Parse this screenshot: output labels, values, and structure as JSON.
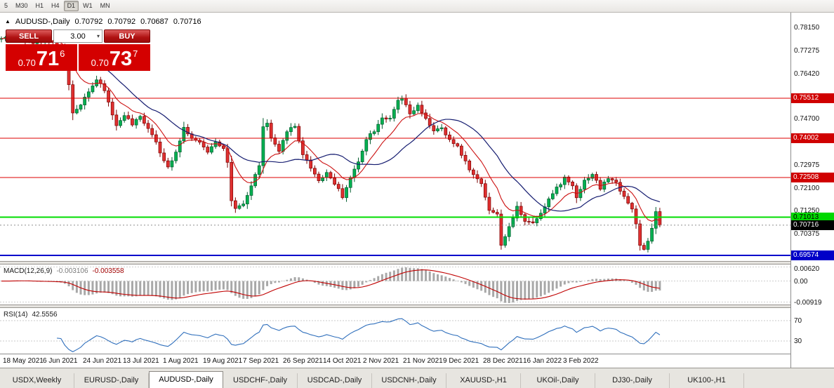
{
  "toolbar": {
    "timeframes": [
      {
        "label": "5",
        "active": false
      },
      {
        "label": "M30",
        "active": false
      },
      {
        "label": "H1",
        "active": false
      },
      {
        "label": "H4",
        "active": false
      },
      {
        "label": "D1",
        "active": true
      },
      {
        "label": "W1",
        "active": false
      },
      {
        "label": "MN",
        "active": false
      }
    ]
  },
  "chart": {
    "header": {
      "title": "AUDUSD-,Daily",
      "open": "0.70792",
      "high": "0.70792",
      "low": "0.70687",
      "close": "0.70716"
    },
    "trade_panel": {
      "sell_label": "SELL",
      "buy_label": "BUY",
      "volume": "3.00",
      "sell_price": {
        "prefix": "0.70",
        "big": "71",
        "sup": "6"
      },
      "buy_price": {
        "prefix": "0.70",
        "big": "73",
        "sup": "7"
      }
    },
    "indicator_labels": {
      "macd": {
        "name": "MACD(12,26,9)",
        "value1": "-0.003106",
        "value2": "-0.003558"
      },
      "rsi": {
        "name": "RSI(14)",
        "value": "42.5556"
      }
    }
  },
  "chart_data": {
    "type": "candlestick",
    "symbol": "AUDUSD-",
    "timeframe": "Daily",
    "price_range": [
      0.6936,
      0.7874
    ],
    "current_price": 0.70716,
    "x_dates": [
      "18 May 2021",
      "6 Jun 2021",
      "24 Jun 2021",
      "13 Jul 2021",
      "1 Aug 2021",
      "19 Aug 2021",
      "7 Sep 2021",
      "26 Sep 2021",
      "14 Oct 2021",
      "2 Nov 2021",
      "21 Nov 2021",
      "9 Dec 2021",
      "28 Dec 2021",
      "16 Jan 2022",
      "3 Feb 2022"
    ],
    "y_axis_labels": [
      0.7815,
      0.77275,
      0.7642,
      0.747,
      0.72975,
      0.721,
      0.7125,
      0.70375
    ],
    "levels": [
      {
        "price": 0.75512,
        "color": "#dd0000",
        "width": 1,
        "label_bg": "#d00000",
        "label_fg": "#ffffff"
      },
      {
        "price": 0.74002,
        "color": "#dd0000",
        "width": 1,
        "label_bg": "#d00000",
        "label_fg": "#ffffff"
      },
      {
        "price": 0.72508,
        "color": "#dd0000",
        "width": 1,
        "label_bg": "#d00000",
        "label_fg": "#ffffff"
      },
      {
        "price": 0.71013,
        "color": "#00dd00",
        "width": 2,
        "label_bg": "#00d800",
        "label_fg": "#000000"
      },
      {
        "price": 0.69574,
        "color": "#0000cc",
        "width": 2,
        "label_bg": "#0000c8",
        "label_fg": "#ffffff"
      }
    ],
    "candles": {
      "count": 167,
      "seed": 42,
      "up_color": "#00b050",
      "up_stroke": "#005c2e",
      "down_color": "#e03030",
      "down_stroke": "#7a0000",
      "close_waypoints": [
        [
          0,
          0.7775
        ],
        [
          4,
          0.779
        ],
        [
          8,
          0.776
        ],
        [
          12,
          0.777
        ],
        [
          15,
          0.774
        ],
        [
          16,
          0.769
        ],
        [
          17,
          0.76
        ],
        [
          18,
          0.749
        ],
        [
          20,
          0.753
        ],
        [
          22,
          0.758
        ],
        [
          24,
          0.762
        ],
        [
          26,
          0.758
        ],
        [
          28,
          0.749
        ],
        [
          29,
          0.7445
        ],
        [
          31,
          0.749
        ],
        [
          33,
          0.745
        ],
        [
          35,
          0.748
        ],
        [
          37,
          0.744
        ],
        [
          39,
          0.739
        ],
        [
          41,
          0.731
        ],
        [
          42,
          0.729
        ],
        [
          44,
          0.735
        ],
        [
          46,
          0.744
        ],
        [
          48,
          0.74
        ],
        [
          50,
          0.738
        ],
        [
          52,
          0.735
        ],
        [
          54,
          0.739
        ],
        [
          56,
          0.736
        ],
        [
          57,
          0.731
        ],
        [
          58,
          0.716
        ],
        [
          59,
          0.713
        ],
        [
          61,
          0.715
        ],
        [
          63,
          0.722
        ],
        [
          65,
          0.73
        ],
        [
          66,
          0.744
        ],
        [
          67,
          0.7455
        ],
        [
          68,
          0.74
        ],
        [
          70,
          0.7345
        ],
        [
          72,
          0.743
        ],
        [
          74,
          0.7445
        ],
        [
          76,
          0.734
        ],
        [
          78,
          0.729
        ],
        [
          80,
          0.724
        ],
        [
          82,
          0.727
        ],
        [
          84,
          0.723
        ],
        [
          86,
          0.718
        ],
        [
          88,
          0.725
        ],
        [
          90,
          0.731
        ],
        [
          92,
          0.74
        ],
        [
          94,
          0.743
        ],
        [
          96,
          0.748
        ],
        [
          98,
          0.747
        ],
        [
          100,
          0.754
        ],
        [
          101,
          0.755
        ],
        [
          103,
          0.749
        ],
        [
          105,
          0.752
        ],
        [
          107,
          0.747
        ],
        [
          109,
          0.743
        ],
        [
          111,
          0.7435
        ],
        [
          113,
          0.739
        ],
        [
          115,
          0.737
        ],
        [
          117,
          0.731
        ],
        [
          119,
          0.726
        ],
        [
          121,
          0.723
        ],
        [
          123,
          0.713
        ],
        [
          125,
          0.711
        ],
        [
          126,
          0.7
        ],
        [
          128,
          0.706
        ],
        [
          130,
          0.714
        ],
        [
          132,
          0.709
        ],
        [
          134,
          0.708
        ],
        [
          136,
          0.712
        ],
        [
          138,
          0.717
        ],
        [
          140,
          0.721
        ],
        [
          142,
          0.725
        ],
        [
          144,
          0.722
        ],
        [
          145,
          0.718
        ],
        [
          147,
          0.724
        ],
        [
          149,
          0.7265
        ],
        [
          151,
          0.721
        ],
        [
          153,
          0.725
        ],
        [
          155,
          0.723
        ],
        [
          157,
          0.718
        ],
        [
          159,
          0.713
        ],
        [
          160,
          0.708
        ],
        [
          161,
          0.699
        ],
        [
          162,
          0.6975
        ],
        [
          163,
          0.701
        ],
        [
          164,
          0.706
        ],
        [
          165,
          0.712
        ],
        [
          166,
          0.70716
        ]
      ]
    },
    "overlays": [
      {
        "name": "ma-fast",
        "type": "ema",
        "period": 10,
        "color": "#cc1111"
      },
      {
        "name": "ma-slow",
        "type": "sma",
        "period": 21,
        "color": "#151c70"
      }
    ],
    "indicators": [
      {
        "name": "macd",
        "params": [
          12,
          26,
          9
        ],
        "range": [
          -0.0102,
          0.0072
        ],
        "axis_labels": [
          {
            "v": 0.0062,
            "label": "0.00620"
          },
          {
            "v": 0,
            "label": "0.00"
          },
          {
            "v": -0.00919,
            "label": "-0.00919"
          }
        ],
        "histogram_color": "#a8a8a8",
        "signal_color": "#c00000"
      },
      {
        "name": "rsi",
        "period": 14,
        "range": [
          5,
          95
        ],
        "level_lines": [
          70,
          30
        ],
        "axis_labels": [
          {
            "v": 70,
            "label": "70"
          },
          {
            "v": 30,
            "label": "30"
          }
        ],
        "line_color": "#2f6fbc",
        "level_color": "#c8c8c8"
      }
    ]
  },
  "tabs": [
    {
      "label": "USDX,Weekly",
      "active": false
    },
    {
      "label": "EURUSD-,Daily",
      "active": false
    },
    {
      "label": "AUDUSD-,Daily",
      "active": true
    },
    {
      "label": "USDCHF-,Daily",
      "active": false
    },
    {
      "label": "USDCAD-,Daily",
      "active": false
    },
    {
      "label": "USDCNH-,Daily",
      "active": false
    },
    {
      "label": "XAUUSD-,H1",
      "active": false
    },
    {
      "label": "UKOil-,Daily",
      "active": false
    },
    {
      "label": "DJ30-,Daily",
      "active": false
    },
    {
      "label": "UK100-,H1",
      "active": false
    }
  ]
}
